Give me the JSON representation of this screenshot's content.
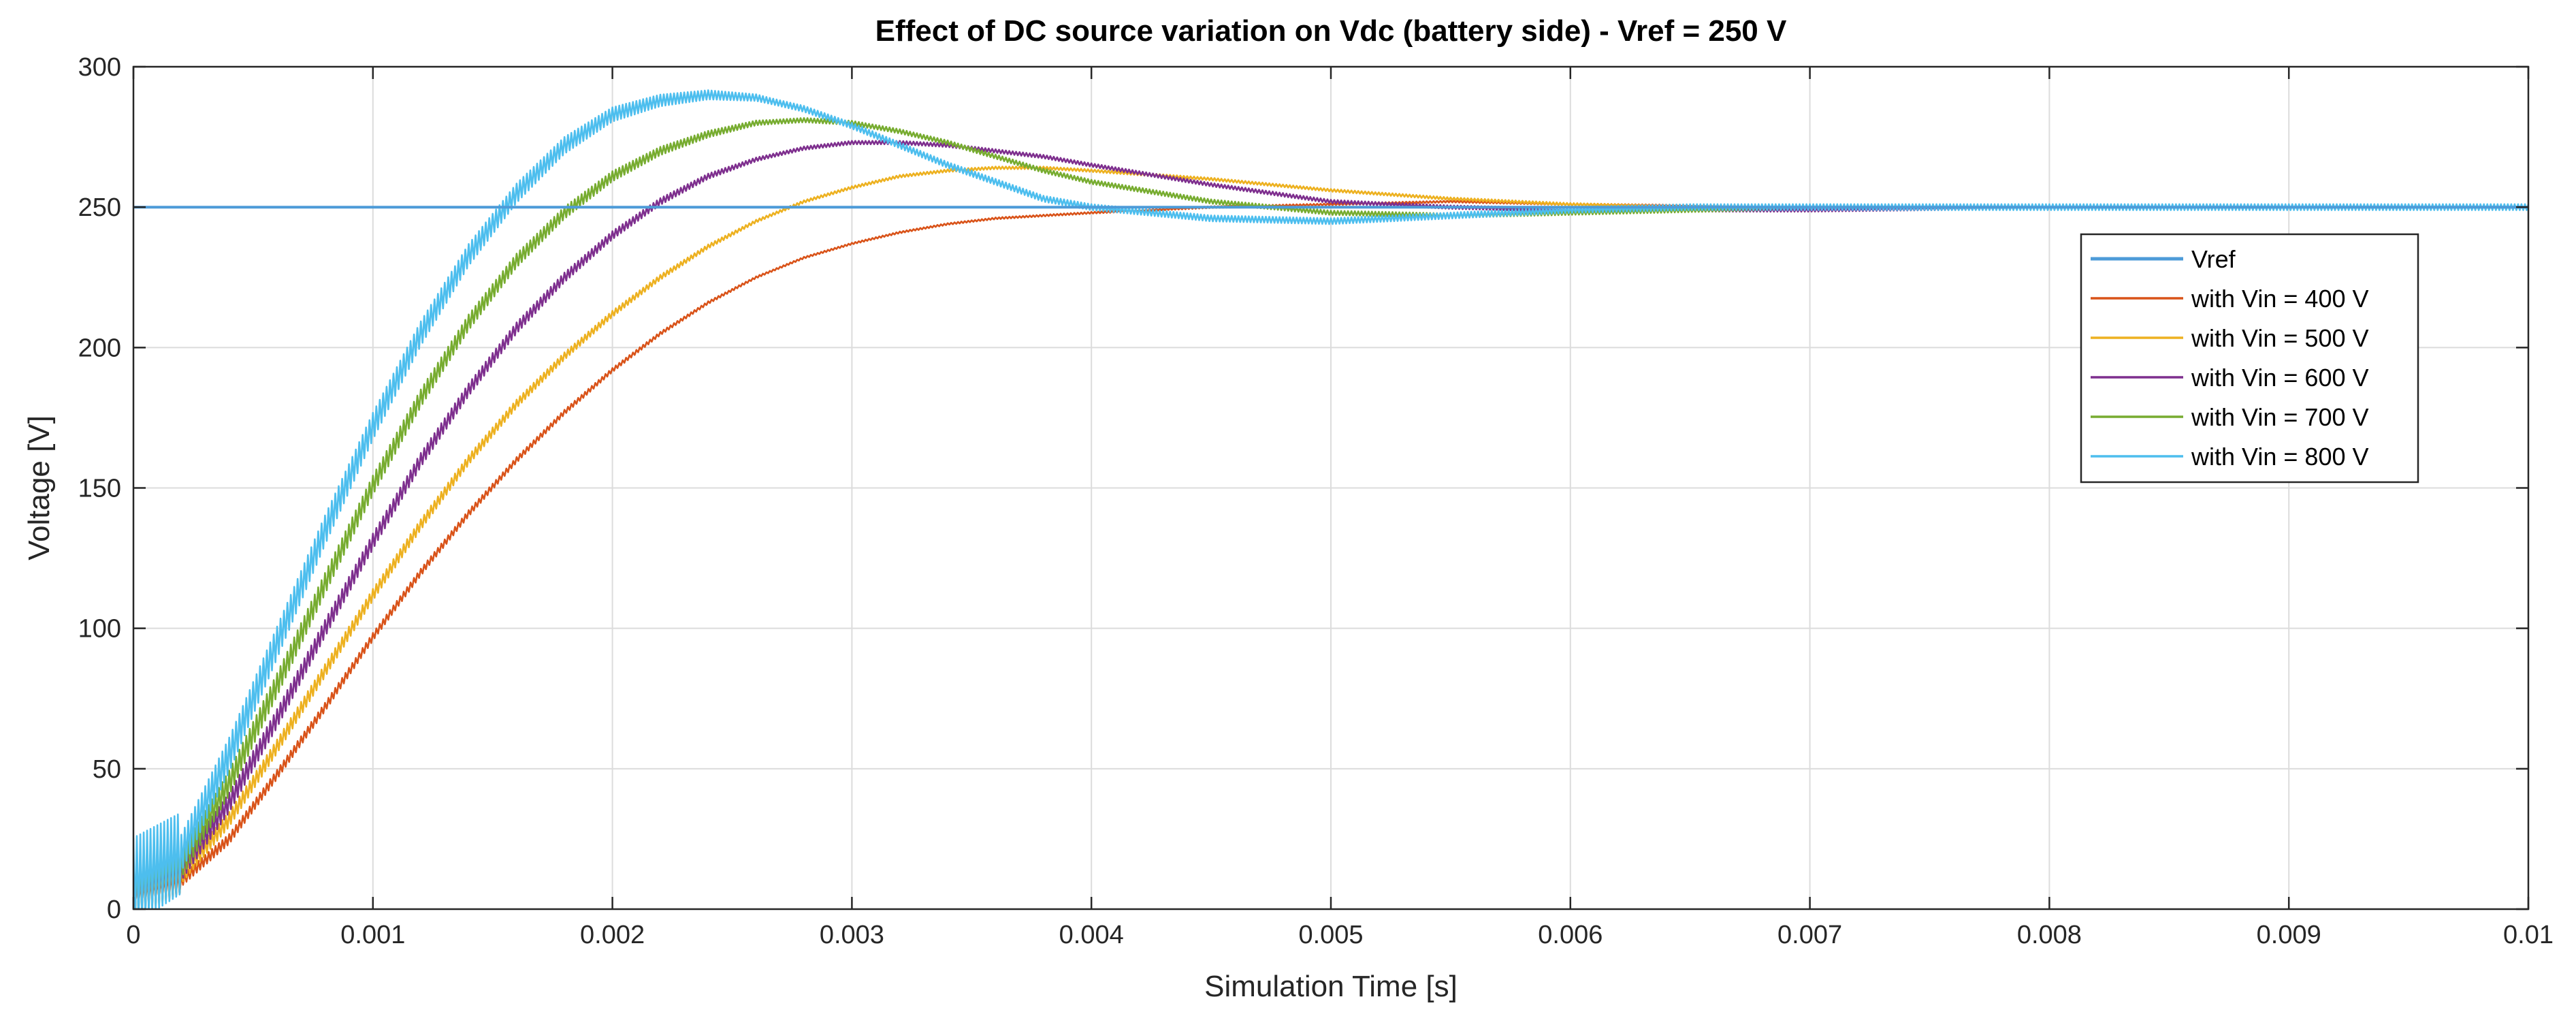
{
  "chart_data": {
    "type": "line",
    "title": "Effect of DC source variation on Vdc (battery side) - Vref = 250 V",
    "xlabel": "Simulation Time [s]",
    "ylabel": "Voltage [V]",
    "xlim": [
      0,
      0.01
    ],
    "ylim": [
      0,
      300
    ],
    "xticks": [
      0,
      0.001,
      0.002,
      0.003,
      0.004,
      0.005,
      0.006,
      0.007,
      0.008,
      0.009,
      0.01
    ],
    "xtick_labels": [
      "0",
      "0.001",
      "0.002",
      "0.003",
      "0.004",
      "0.005",
      "0.006",
      "0.007",
      "0.008",
      "0.009",
      "0.01"
    ],
    "yticks": [
      0,
      50,
      100,
      150,
      200,
      250,
      300
    ],
    "ytick_labels": [
      "0",
      "50",
      "100",
      "150",
      "200",
      "250",
      "300"
    ],
    "grid": true,
    "legend_position": "right",
    "series": [
      {
        "name": "Vref",
        "color": "#4d9bd8",
        "ripple": 0,
        "x": [
          0,
          0.01
        ],
        "y": [
          250,
          250
        ]
      },
      {
        "name": "with Vin = 400 V",
        "color": "#d95319",
        "ripple": 2,
        "x": [
          0,
          0.0002,
          0.0004,
          0.0006,
          0.0008,
          0.001,
          0.0012,
          0.0014,
          0.0016,
          0.0018,
          0.002,
          0.0022,
          0.0024,
          0.0026,
          0.0028,
          0.003,
          0.0032,
          0.0034,
          0.0036,
          0.0038,
          0.004,
          0.0045,
          0.005,
          0.0055,
          0.006,
          0.0065,
          0.007,
          0.008,
          0.009,
          0.01
        ],
        "y": [
          5,
          10,
          25,
          48,
          72,
          97,
          120,
          141,
          160,
          177,
          192,
          205,
          216,
          225,
          232,
          237,
          241,
          244,
          246,
          247,
          248,
          250,
          251,
          252,
          251,
          250.5,
          250,
          250,
          250,
          250
        ]
      },
      {
        "name": "with Vin = 500 V",
        "color": "#edb120",
        "ripple": 3,
        "x": [
          0,
          0.0002,
          0.0004,
          0.0006,
          0.0008,
          0.001,
          0.0012,
          0.0014,
          0.0016,
          0.0018,
          0.002,
          0.0022,
          0.0024,
          0.0026,
          0.0028,
          0.003,
          0.0032,
          0.0034,
          0.0036,
          0.0038,
          0.004,
          0.0045,
          0.005,
          0.0055,
          0.006,
          0.0065,
          0.007,
          0.008,
          0.009,
          0.01
        ],
        "y": [
          6,
          12,
          32,
          58,
          85,
          112,
          137,
          160,
          180,
          197,
          212,
          225,
          236,
          245,
          252,
          257,
          261,
          263,
          264,
          264,
          263,
          260,
          256,
          253,
          251,
          250,
          250,
          250,
          250,
          250
        ]
      },
      {
        "name": "with Vin = 600 V",
        "color": "#7e2f8e",
        "ripple": 4,
        "x": [
          0,
          0.0002,
          0.0004,
          0.0006,
          0.0008,
          0.001,
          0.0012,
          0.0014,
          0.0016,
          0.0018,
          0.002,
          0.0022,
          0.0024,
          0.0026,
          0.0028,
          0.003,
          0.0032,
          0.0034,
          0.0036,
          0.0038,
          0.004,
          0.0045,
          0.005,
          0.0055,
          0.006,
          0.0065,
          0.007,
          0.008,
          0.009,
          0.01
        ],
        "y": [
          7,
          14,
          38,
          68,
          100,
          131,
          160,
          185,
          207,
          225,
          240,
          252,
          261,
          267,
          271,
          273,
          273,
          272,
          270,
          268,
          265,
          258,
          252,
          250,
          249,
          249,
          249,
          250,
          250,
          250
        ]
      },
      {
        "name": "with Vin = 700 V",
        "color": "#77ac30",
        "ripple": 5,
        "x": [
          0,
          0.0002,
          0.0004,
          0.0006,
          0.0008,
          0.001,
          0.0012,
          0.0014,
          0.0016,
          0.0018,
          0.002,
          0.0022,
          0.0024,
          0.0026,
          0.0028,
          0.003,
          0.0032,
          0.0034,
          0.0036,
          0.0038,
          0.004,
          0.0045,
          0.005,
          0.0055,
          0.006,
          0.0065,
          0.007,
          0.008,
          0.009,
          0.01
        ],
        "y": [
          8,
          16,
          45,
          80,
          116,
          151,
          182,
          209,
          231,
          248,
          261,
          270,
          276,
          280,
          281,
          280,
          277,
          273,
          268,
          263,
          259,
          252,
          248,
          247,
          248,
          249,
          250,
          250,
          250,
          250
        ]
      },
      {
        "name": "with Vin = 800 V",
        "color": "#4dbeee",
        "ripple": 7,
        "x": [
          0,
          0.0002,
          0.0004,
          0.0006,
          0.0008,
          0.001,
          0.0012,
          0.0014,
          0.0016,
          0.0018,
          0.002,
          0.0022,
          0.0024,
          0.0026,
          0.0028,
          0.003,
          0.0032,
          0.0034,
          0.0036,
          0.0038,
          0.004,
          0.0045,
          0.005,
          0.0055,
          0.006,
          0.0065,
          0.007,
          0.008,
          0.009,
          0.01
        ],
        "y": [
          10,
          20,
          55,
          95,
          135,
          172,
          205,
          233,
          255,
          272,
          283,
          288,
          290,
          289,
          285,
          279,
          272,
          265,
          259,
          253,
          250,
          246,
          245,
          247,
          249,
          250,
          250,
          250,
          250,
          250
        ]
      }
    ]
  }
}
